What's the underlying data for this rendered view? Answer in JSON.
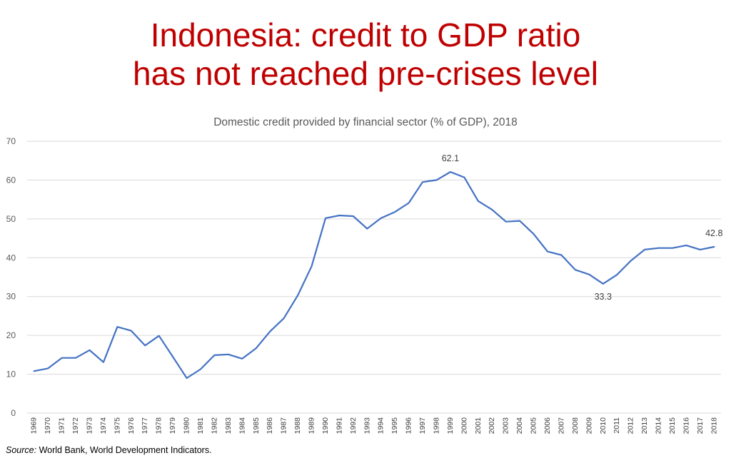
{
  "slide": {
    "title_line1": "Indonesia: credit to GDP ratio",
    "title_line2": "has not reached pre-crises level",
    "source_label": "Source:",
    "source_text": " World Bank, World Development Indicators."
  },
  "chart_data": {
    "type": "line",
    "title": "Domestic credit provided by financial sector (% of GDP), 2018",
    "xlabel": "",
    "ylabel": "",
    "ylim": [
      0,
      70
    ],
    "yticks": [
      0,
      10,
      20,
      30,
      40,
      50,
      60,
      70
    ],
    "grid": true,
    "line_color": "#4472c4",
    "grid_color": "#d9d9d9",
    "categories": [
      "1969",
      "1970",
      "1971",
      "1972",
      "1973",
      "1974",
      "1975",
      "1976",
      "1977",
      "1978",
      "1979",
      "1980",
      "1981",
      "1982",
      "1983",
      "1984",
      "1985",
      "1986",
      "1987",
      "1988",
      "1989",
      "1990",
      "1991",
      "1992",
      "1993",
      "1994",
      "1995",
      "1996",
      "1997",
      "1998",
      "1999",
      "2000",
      "2001",
      "2002",
      "2003",
      "2004",
      "2005",
      "2006",
      "2007",
      "2008",
      "2009",
      "2010",
      "2011",
      "2012",
      "2013",
      "2014",
      "2015",
      "2016",
      "2017",
      "2018"
    ],
    "series": [
      {
        "values": [
          10.8,
          11.5,
          14.2,
          14.2,
          16.2,
          13.1,
          22.2,
          21.2,
          17.4,
          19.9,
          14.5,
          9.0,
          11.3,
          14.9,
          15.1,
          14.0,
          16.7,
          21.0,
          24.4,
          30.3,
          37.8,
          50.2,
          50.9,
          50.7,
          47.5,
          50.2,
          51.8,
          54.1,
          59.5,
          60.0,
          62.1,
          60.7,
          54.6,
          52.4,
          49.3,
          49.5,
          46.1,
          41.6,
          40.7,
          36.9,
          35.7,
          33.3,
          35.6,
          39.2,
          42.1,
          42.5,
          42.5,
          43.2,
          42.1,
          42.8
        ]
      }
    ],
    "annotations": [
      {
        "category": "1999",
        "value": 62.1,
        "text": "62.1",
        "position": "above"
      },
      {
        "category": "2010",
        "value": 33.3,
        "text": "33.3",
        "position": "below"
      },
      {
        "category": "2018",
        "value": 42.8,
        "text": "42.8",
        "position": "above"
      }
    ]
  }
}
